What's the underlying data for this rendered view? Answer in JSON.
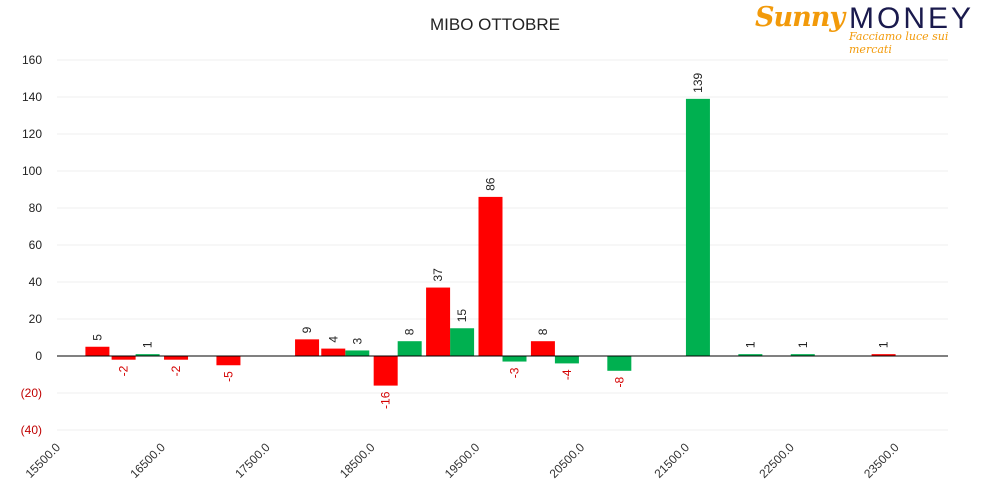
{
  "logo": {
    "sunny": "Sunny",
    "money": "MONEY",
    "tagline": "Facciamo luce sui mercati"
  },
  "chart_data": {
    "type": "bar",
    "title": "MIBO OTTOBRE",
    "xlabel": "",
    "ylabel": "",
    "ylim": [
      -40,
      160
    ],
    "yticks": [
      {
        "value": 160,
        "label": "160"
      },
      {
        "value": 140,
        "label": "140"
      },
      {
        "value": 120,
        "label": "120"
      },
      {
        "value": 100,
        "label": "100"
      },
      {
        "value": 80,
        "label": "80"
      },
      {
        "value": 60,
        "label": "60"
      },
      {
        "value": 40,
        "label": "40"
      },
      {
        "value": 20,
        "label": "20"
      },
      {
        "value": 0,
        "label": "0"
      },
      {
        "value": -20,
        "label": "(20)"
      },
      {
        "value": -40,
        "label": "(40)"
      }
    ],
    "xlim": [
      15500,
      24000
    ],
    "xticks": [
      {
        "value": 15500,
        "label": "15500.0"
      },
      {
        "value": 16500,
        "label": "16500.0"
      },
      {
        "value": 17500,
        "label": "17500.0"
      },
      {
        "value": 18500,
        "label": "18500.0"
      },
      {
        "value": 19500,
        "label": "19500.0"
      },
      {
        "value": 20500,
        "label": "20500.0"
      },
      {
        "value": 21500,
        "label": "21500.0"
      },
      {
        "value": 22500,
        "label": "22500.0"
      },
      {
        "value": 23500,
        "label": "23500.0"
      }
    ],
    "grid": true,
    "legend": "none",
    "colors": {
      "red": "#ff0000",
      "green": "#00b050",
      "neg_label": "#d40000"
    },
    "bars": [
      {
        "x": 16000,
        "series": "red",
        "value": 5,
        "label": "5"
      },
      {
        "x": 16250,
        "series": "green",
        "value": 1,
        "label": "1"
      },
      {
        "x": 16250,
        "series": "red",
        "value": -2,
        "label": "-2"
      },
      {
        "x": 16750,
        "series": "red",
        "value": -2,
        "label": "-2"
      },
      {
        "x": 17250,
        "series": "red",
        "value": -5,
        "label": "-5"
      },
      {
        "x": 18000,
        "series": "red",
        "value": 9,
        "label": "9"
      },
      {
        "x": 18250,
        "series": "green",
        "value": 3,
        "label": "3"
      },
      {
        "x": 18250,
        "series": "red",
        "value": 4,
        "label": "4"
      },
      {
        "x": 18750,
        "series": "green",
        "value": 8,
        "label": "8"
      },
      {
        "x": 18750,
        "series": "red",
        "value": -16,
        "label": "-16"
      },
      {
        "x": 19250,
        "series": "green",
        "value": 15,
        "label": "15"
      },
      {
        "x": 19250,
        "series": "red",
        "value": 37,
        "label": "37"
      },
      {
        "x": 19750,
        "series": "green",
        "value": -3,
        "label": "-3"
      },
      {
        "x": 19750,
        "series": "red",
        "value": 86,
        "label": "86"
      },
      {
        "x": 20250,
        "series": "green",
        "value": -4,
        "label": "-4"
      },
      {
        "x": 20250,
        "series": "red",
        "value": 8,
        "label": "8"
      },
      {
        "x": 20750,
        "series": "green",
        "value": -8,
        "label": "-8"
      },
      {
        "x": 21500,
        "series": "green",
        "value": 139,
        "label": "139"
      },
      {
        "x": 22000,
        "series": "green",
        "value": 1,
        "label": "1"
      },
      {
        "x": 22500,
        "series": "green",
        "value": 1,
        "label": "1"
      },
      {
        "x": 23500,
        "series": "red",
        "value": 1,
        "label": "1"
      }
    ]
  }
}
